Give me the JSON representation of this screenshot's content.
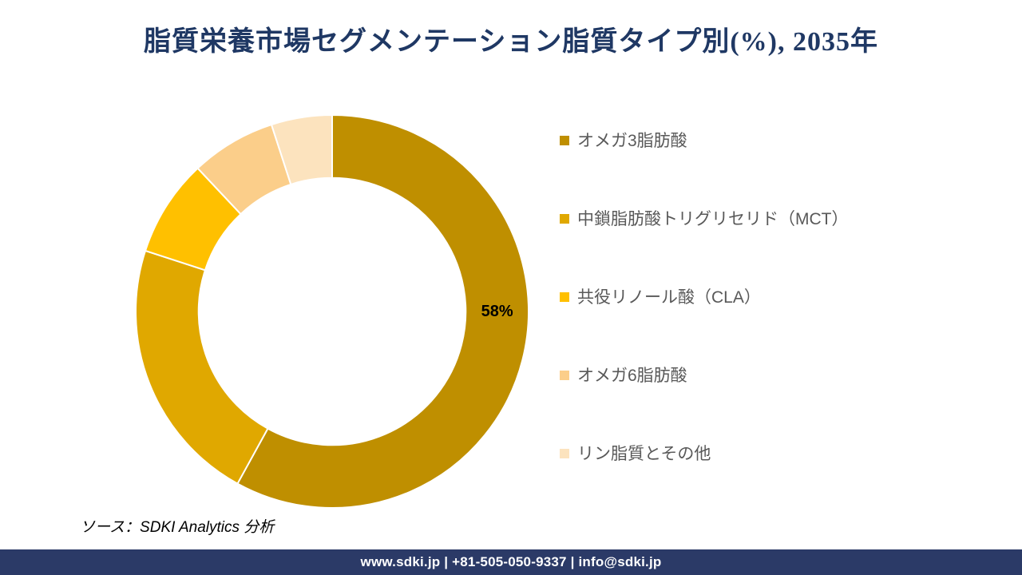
{
  "title": "脂質栄養市場セグメンテーション脂質タイプ別(%), 2035年",
  "source_note": "ソース：SDKI Analytics 分析",
  "footer": {
    "text": "www.sdki.jp | +81-505-050-9337 | info@sdki.jp"
  },
  "colors": {
    "title": "#1F3864",
    "legend_text": "#595959",
    "data_label": "#000000",
    "footer_background": "#2B3A67",
    "footer_text": "#FFFFFF",
    "segment_separator": "#FFFFFF",
    "background": "#FFFFFF"
  },
  "chart_data": {
    "type": "pie",
    "subtype": "donut",
    "title": "脂質栄養市場セグメンテーション脂質タイプ別(%), 2035年",
    "unit": "%",
    "hole_ratio": 0.68,
    "start_angle_deg": 0,
    "direction": "clockwise",
    "legend_position": "right",
    "grid": false,
    "segments": [
      {
        "label": "オメガ3脂肪酸",
        "value": 58,
        "color": "#BF8F00",
        "data_label": "58%",
        "data_label_angle_deg": 90
      },
      {
        "label": "中鎖脂肪酸トリグリセリド（MCT）",
        "value": 22,
        "color": "#E0A800"
      },
      {
        "label": "共役リノール酸（CLA）",
        "value": 8,
        "color": "#FFC000"
      },
      {
        "label": "オメガ6脂肪酸",
        "value": 7,
        "color": "#FBCE8A"
      },
      {
        "label": "リン脂質とその他",
        "value": 5,
        "color": "#FCE3BE"
      }
    ]
  }
}
